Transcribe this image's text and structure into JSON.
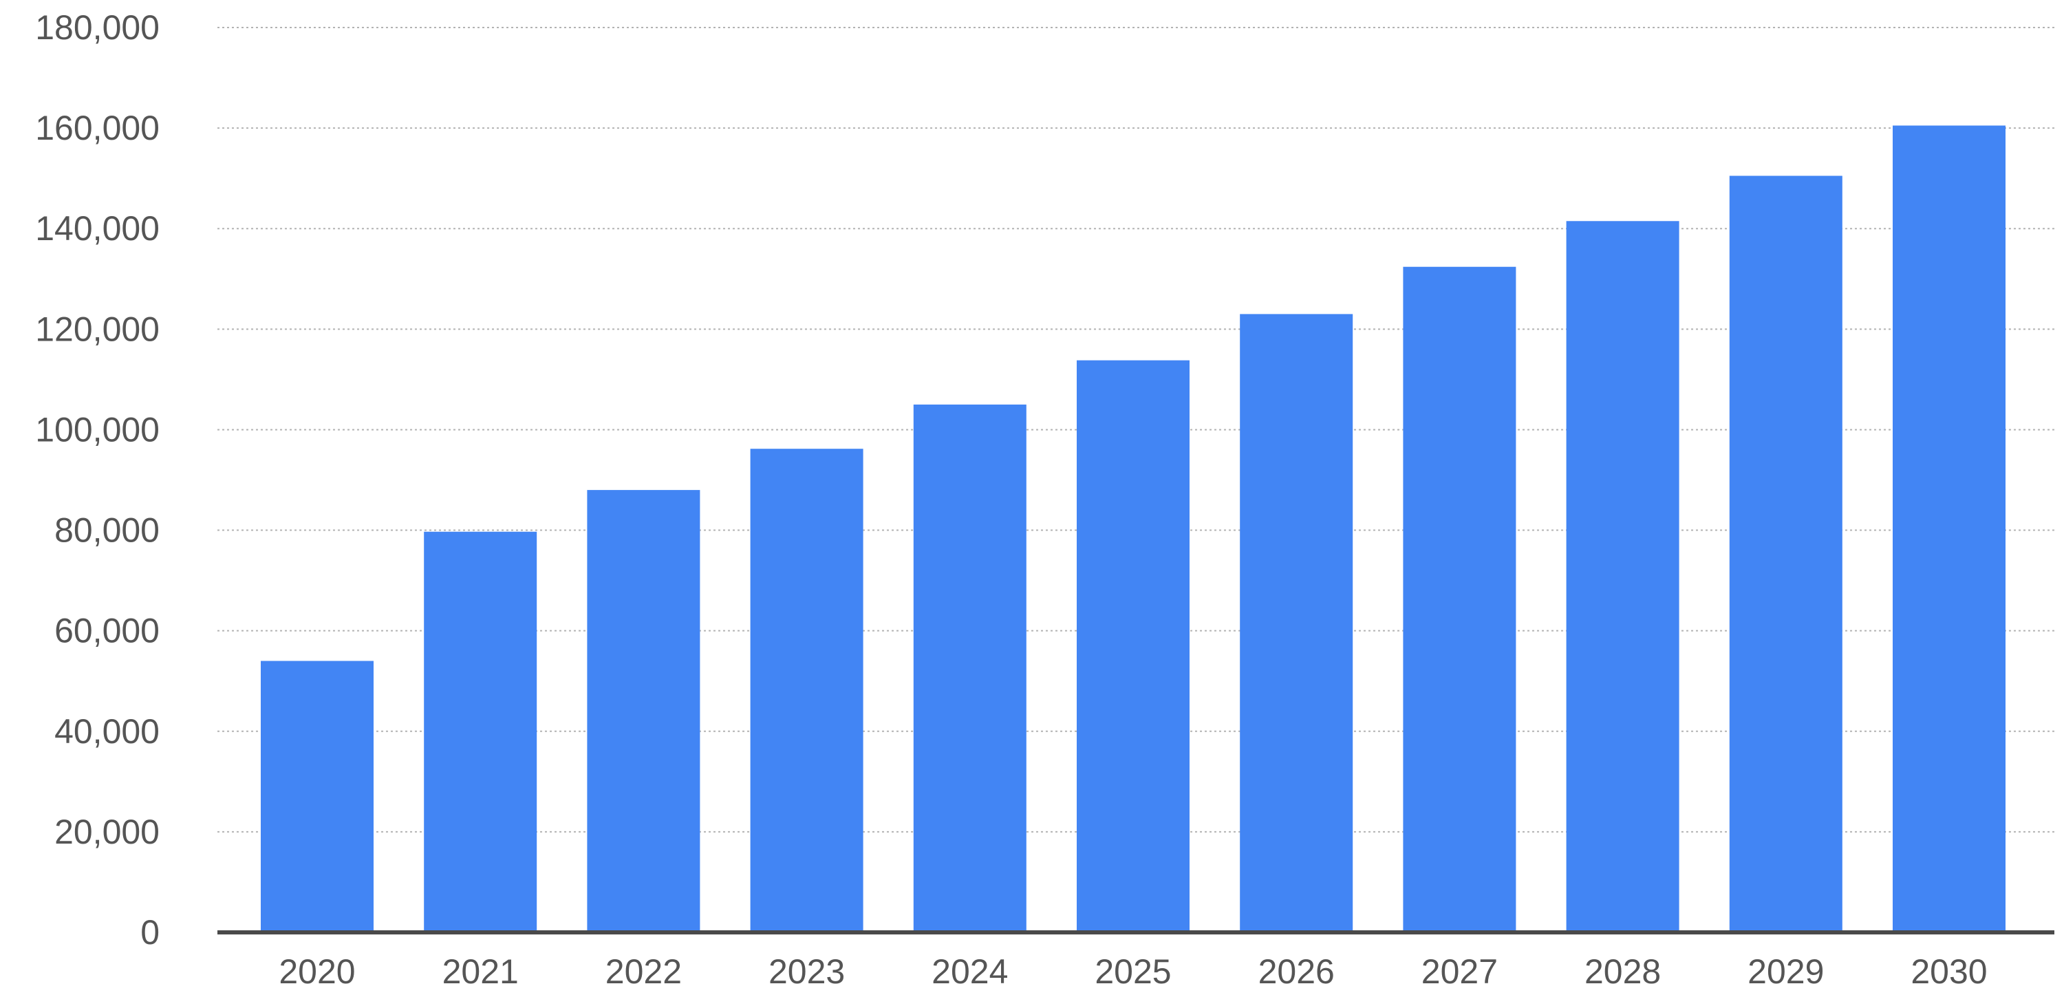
{
  "chart_data": {
    "type": "bar",
    "title": "",
    "xlabel": "",
    "ylabel": "",
    "categories": [
      "2020",
      "2021",
      "2022",
      "2023",
      "2024",
      "2025",
      "2026",
      "2027",
      "2028",
      "2029",
      "2030"
    ],
    "values": [
      54000,
      79700,
      88000,
      96200,
      105000,
      113800,
      123000,
      132400,
      141500,
      150500,
      160500
    ],
    "ylim": [
      0,
      180000
    ],
    "yticks": [
      0,
      20000,
      40000,
      60000,
      80000,
      100000,
      120000,
      140000,
      160000,
      180000
    ],
    "ytick_labels": [
      "0",
      "20,000",
      "40,000",
      "60,000",
      "80,000",
      "100,000",
      "120,000",
      "140,000",
      "160,000",
      "180,000"
    ],
    "grid": "horizontal dotted",
    "legend": "none",
    "colors": {
      "bar": "#4285f4",
      "grid": "#b3b3b3",
      "axis": "#4a4a4a",
      "text": "#555555"
    }
  }
}
